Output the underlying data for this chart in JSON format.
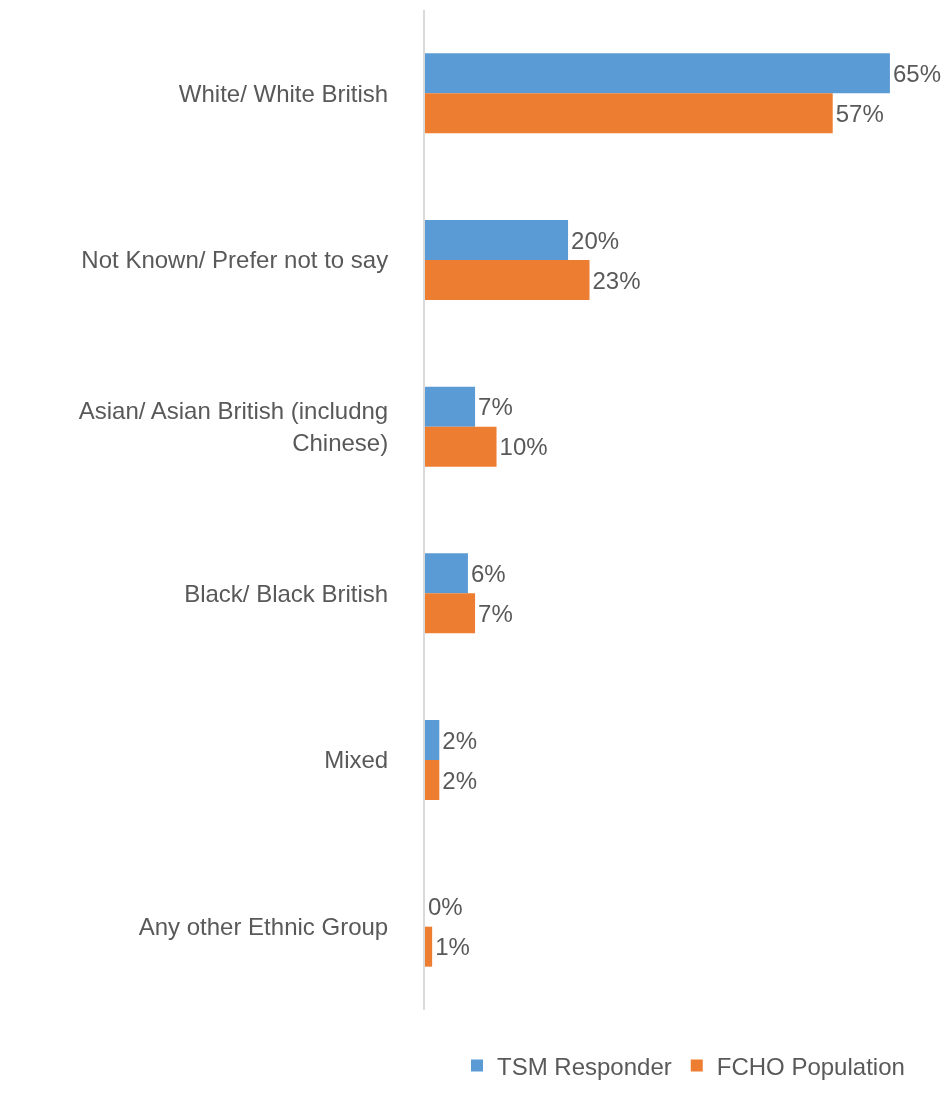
{
  "chart_data": {
    "type": "bar",
    "orientation": "horizontal",
    "categories": [
      "White/ White British",
      "Not Known/ Prefer not to say",
      "Asian/ Asian British (includng Chinese)",
      "Black/ Black British",
      "Mixed",
      "Any other Ethnic Group"
    ],
    "series": [
      {
        "name": "TSM Responder",
        "color": "#5b9bd5",
        "values": [
          65,
          20,
          7,
          6,
          2,
          0
        ],
        "value_labels": [
          "65%",
          "20%",
          "7%",
          "6%",
          "2%",
          "0%"
        ]
      },
      {
        "name": "FCHO Population",
        "color": "#ed7d31",
        "values": [
          57,
          23,
          10,
          7,
          2,
          1
        ],
        "value_labels": [
          "57%",
          "23%",
          "10%",
          "7%",
          "2%",
          "1%"
        ]
      }
    ],
    "legend": "bottom"
  }
}
